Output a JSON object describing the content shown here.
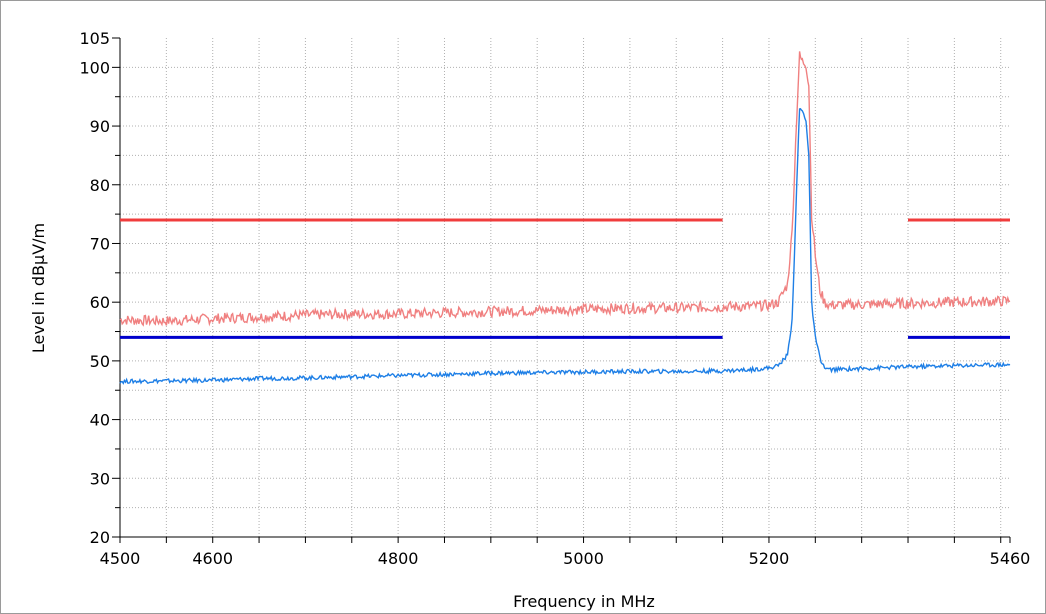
{
  "chart_data": {
    "type": "line",
    "xlabel": "Frequency in MHz",
    "ylabel": "Level in dBµV/m",
    "xlim": [
      4500,
      5460
    ],
    "ylim": [
      20,
      105
    ],
    "x_ticks": [
      4500,
      4600,
      4800,
      5000,
      5200,
      5460
    ],
    "y_ticks": [
      20,
      30,
      40,
      50,
      60,
      70,
      80,
      90,
      100,
      105
    ],
    "x_tick_labels": [
      "4500",
      "4600",
      "4800",
      "5000",
      "5200",
      "5460"
    ],
    "y_tick_labels": [
      "20",
      "30",
      "40",
      "50",
      "60",
      "70",
      "80",
      "90",
      "100",
      "105"
    ],
    "grid": true,
    "series": [
      {
        "color": "#f08080",
        "x": [
          4500,
          4550,
          4600,
          4650,
          4700,
          4750,
          4800,
          4850,
          4900,
          4950,
          5000,
          5050,
          5100,
          5150,
          5180,
          5200,
          5210,
          5220,
          5225,
          5230,
          5233,
          5236,
          5240,
          5243,
          5246,
          5250,
          5255,
          5260,
          5265,
          5270,
          5300,
          5350,
          5400,
          5460
        ],
        "y": [
          57,
          56.8,
          57.2,
          57.5,
          57.8,
          58,
          58,
          58.2,
          58.4,
          58.6,
          58.8,
          59,
          59,
          59.2,
          59.3,
          59.5,
          60,
          63,
          72,
          92,
          102,
          101,
          100.5,
          97,
          75,
          68,
          62,
          60,
          59.5,
          59.5,
          59.6,
          59.8,
          60,
          60.2
        ]
      },
      {
        "color": "#1e7fe6",
        "x": [
          4500,
          4550,
          4600,
          4650,
          4700,
          4750,
          4800,
          4850,
          4900,
          4950,
          5000,
          5050,
          5100,
          5150,
          5180,
          5200,
          5210,
          5220,
          5225,
          5230,
          5233,
          5236,
          5240,
          5243,
          5246,
          5250,
          5255,
          5260,
          5265,
          5270,
          5300,
          5350,
          5400,
          5460
        ],
        "y": [
          46.5,
          46.6,
          46.7,
          47,
          47.1,
          47.3,
          47.5,
          47.7,
          47.9,
          48,
          48.1,
          48.2,
          48.2,
          48.3,
          48.5,
          48.8,
          49.2,
          51,
          57,
          80,
          93,
          92.5,
          91,
          85,
          60,
          54,
          50.5,
          48.8,
          48.5,
          48.5,
          48.7,
          49,
          49.2,
          49.4
        ]
      },
      {
        "color": "#f03c3c",
        "segments": [
          [
            [
              4500,
              74
            ],
            [
              5150,
              74
            ]
          ],
          [
            [
              5350,
              74
            ],
            [
              5460,
              74
            ]
          ]
        ]
      },
      {
        "color": "#0000cc",
        "segments": [
          [
            [
              4500,
              54
            ],
            [
              5150,
              54
            ]
          ],
          [
            [
              5350,
              54
            ],
            [
              5460,
              54
            ]
          ]
        ]
      }
    ]
  }
}
